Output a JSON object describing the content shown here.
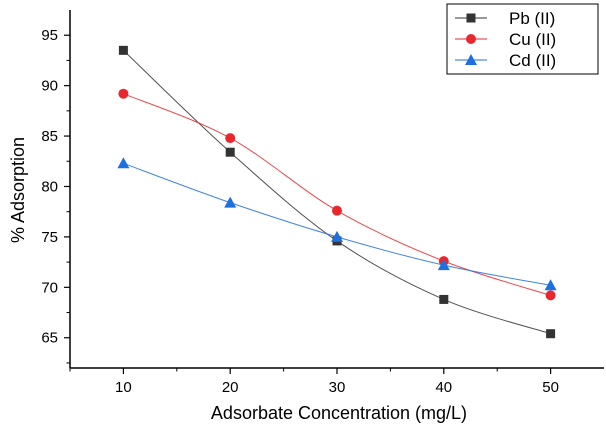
{
  "chart_data": {
    "type": "line",
    "title": "",
    "xlabel": "Adsorbate Concentration (mg/L)",
    "ylabel": "% Adsorption",
    "x": [
      10,
      20,
      30,
      40,
      50
    ],
    "xticks": [
      "10",
      "20",
      "30",
      "40",
      "50"
    ],
    "xlim": [
      5,
      55
    ],
    "yticks": [
      "65",
      "70",
      "75",
      "80",
      "85",
      "90",
      "95"
    ],
    "ylim": [
      62,
      97.5
    ],
    "grid": false,
    "legend_position": "top-right",
    "series": [
      {
        "name": "Pb (II)",
        "values": [
          93.5,
          83.4,
          74.6,
          68.8,
          65.4
        ],
        "color": "#333333",
        "marker": "square"
      },
      {
        "name": "Cu (II)",
        "values": [
          89.2,
          84.8,
          77.6,
          72.6,
          69.2
        ],
        "color": "#e8282e",
        "marker": "circle"
      },
      {
        "name": "Cd (II)",
        "values": [
          82.3,
          78.4,
          75.0,
          72.2,
          70.2
        ],
        "color": "#1f6fe0",
        "marker": "triangle"
      }
    ]
  }
}
